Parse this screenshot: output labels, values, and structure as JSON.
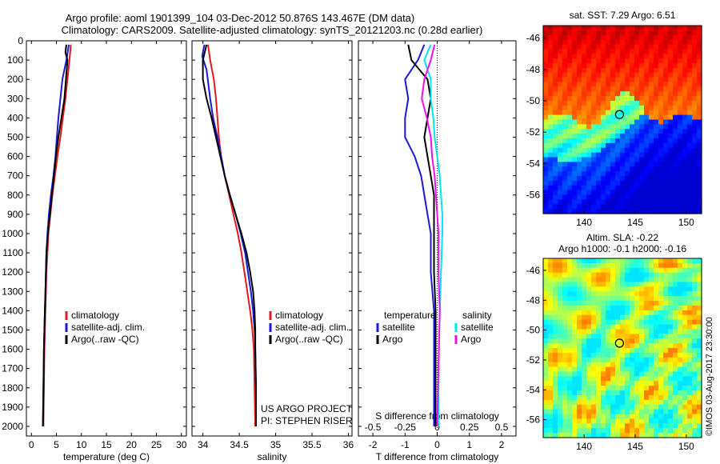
{
  "header": {
    "line1": "Argo profile: aoml 1901399_104 03-Dec-2012 50.876S 143.467E (DM data)",
    "line2": "Climatology: CARS2009. Satellite-adjusted climatology: synTS_20121203.nc (0.28d earlier)"
  },
  "credit": {
    "project": "US ARGO PROJECT",
    "pi": "PI: STEPHEN RISER",
    "imos": "©IMOS 03-Aug-2017 23:30:00"
  },
  "colors": {
    "climatology": "#e41a1c",
    "satellite": "#1a1ad6",
    "argo": "#000000",
    "cyan": "#00e5ee",
    "magenta": "#ee10ee"
  },
  "chart_data": [
    {
      "type": "line",
      "name": "temperature",
      "xlabel": "temperature (deg C)",
      "ylabel": "",
      "xlim": [
        -1,
        31
      ],
      "ylim": [
        2050,
        0
      ],
      "xticks": [
        0,
        5,
        10,
        15,
        20,
        25,
        30
      ],
      "yticks": [
        0,
        100,
        200,
        300,
        400,
        500,
        600,
        700,
        800,
        900,
        1000,
        1100,
        1200,
        1300,
        1400,
        1500,
        1600,
        1700,
        1800,
        1900,
        2000
      ],
      "legend": [
        "climatology",
        "satellite-adj. clim.",
        "Argo(..raw -QC)"
      ],
      "series": [
        {
          "name": "climatology",
          "color": "#e41a1c",
          "points": [
            [
              7.9,
              20
            ],
            [
              7.6,
              100
            ],
            [
              7.2,
              200
            ],
            [
              6.8,
              300
            ],
            [
              6.3,
              400
            ],
            [
              5.8,
              500
            ],
            [
              5.2,
              600
            ],
            [
              4.7,
              700
            ],
            [
              4.2,
              800
            ],
            [
              3.8,
              900
            ],
            [
              3.4,
              1000
            ],
            [
              3.2,
              1100
            ],
            [
              3.0,
              1200
            ],
            [
              2.9,
              1300
            ],
            [
              2.8,
              1400
            ],
            [
              2.7,
              1500
            ],
            [
              2.6,
              1600
            ],
            [
              2.5,
              1800
            ],
            [
              2.4,
              2000
            ]
          ]
        },
        {
          "name": "satellite-adj. clim.",
          "color": "#1a1ad6",
          "points": [
            [
              7.5,
              20
            ],
            [
              7.0,
              100
            ],
            [
              6.2,
              200
            ],
            [
              5.8,
              300
            ],
            [
              5.4,
              400
            ],
            [
              5.1,
              500
            ],
            [
              4.8,
              600
            ],
            [
              4.4,
              700
            ],
            [
              3.9,
              800
            ],
            [
              3.5,
              900
            ],
            [
              3.2,
              1000
            ],
            [
              3.0,
              1100
            ],
            [
              2.9,
              1200
            ],
            [
              2.8,
              1300
            ],
            [
              2.7,
              1400
            ],
            [
              2.6,
              1500
            ],
            [
              2.5,
              1600
            ],
            [
              2.4,
              1800
            ],
            [
              2.3,
              2000
            ]
          ]
        },
        {
          "name": "Argo(..raw -QC)",
          "color": "#000000",
          "points": [
            [
              7.0,
              20
            ],
            [
              6.8,
              60
            ],
            [
              7.2,
              100
            ],
            [
              6.9,
              200
            ],
            [
              6.6,
              300
            ],
            [
              6.0,
              400
            ],
            [
              5.4,
              500
            ],
            [
              4.9,
              600
            ],
            [
              4.5,
              700
            ],
            [
              4.1,
              800
            ],
            [
              3.7,
              900
            ],
            [
              3.3,
              1000
            ],
            [
              3.0,
              1100
            ],
            [
              2.9,
              1200
            ],
            [
              2.8,
              1300
            ],
            [
              2.7,
              1400
            ],
            [
              2.6,
              1500
            ],
            [
              2.5,
              1600
            ],
            [
              2.4,
              1800
            ],
            [
              2.3,
              2000
            ]
          ]
        }
      ]
    },
    {
      "type": "line",
      "name": "salinity",
      "xlabel": "salinity",
      "ylabel": "",
      "xlim": [
        33.85,
        36.05
      ],
      "ylim": [
        2050,
        0
      ],
      "xticks": [
        34,
        34.5,
        35,
        35.5,
        36
      ],
      "legend": [
        "climatology",
        "satellite-adj. clim.",
        "Argo(..raw -QC)"
      ],
      "series": [
        {
          "name": "climatology",
          "color": "#e41a1c",
          "points": [
            [
              34.07,
              20
            ],
            [
              34.1,
              100
            ],
            [
              34.15,
              200
            ],
            [
              34.18,
              300
            ],
            [
              34.2,
              400
            ],
            [
              34.22,
              500
            ],
            [
              34.25,
              600
            ],
            [
              34.3,
              700
            ],
            [
              34.36,
              800
            ],
            [
              34.42,
              900
            ],
            [
              34.48,
              1000
            ],
            [
              34.53,
              1100
            ],
            [
              34.57,
              1200
            ],
            [
              34.61,
              1300
            ],
            [
              34.65,
              1400
            ],
            [
              34.68,
              1500
            ],
            [
              34.7,
              1600
            ],
            [
              34.71,
              1800
            ],
            [
              34.72,
              2000
            ]
          ]
        },
        {
          "name": "satellite-adj. clim.",
          "color": "#1a1ad6",
          "points": [
            [
              34.02,
              20
            ],
            [
              33.99,
              80
            ],
            [
              34.05,
              150
            ],
            [
              34.1,
              300
            ],
            [
              34.14,
              400
            ],
            [
              34.2,
              500
            ],
            [
              34.25,
              600
            ],
            [
              34.3,
              700
            ],
            [
              34.37,
              800
            ],
            [
              34.45,
              900
            ],
            [
              34.52,
              1000
            ],
            [
              34.58,
              1100
            ],
            [
              34.62,
              1200
            ],
            [
              34.66,
              1300
            ],
            [
              34.69,
              1400
            ],
            [
              34.71,
              1500
            ],
            [
              34.72,
              1600
            ],
            [
              34.73,
              1800
            ],
            [
              34.73,
              2000
            ]
          ]
        },
        {
          "name": "Argo(..raw -QC)",
          "color": "#000000",
          "points": [
            [
              34.05,
              20
            ],
            [
              34.0,
              100
            ],
            [
              34.0,
              200
            ],
            [
              34.05,
              300
            ],
            [
              34.12,
              400
            ],
            [
              34.18,
              500
            ],
            [
              34.24,
              600
            ],
            [
              34.3,
              700
            ],
            [
              34.37,
              800
            ],
            [
              34.45,
              900
            ],
            [
              34.53,
              1000
            ],
            [
              34.6,
              1100
            ],
            [
              34.65,
              1200
            ],
            [
              34.69,
              1300
            ],
            [
              34.71,
              1400
            ],
            [
              34.72,
              1500
            ],
            [
              34.72,
              1600
            ],
            [
              34.73,
              1800
            ],
            [
              34.73,
              2000
            ]
          ]
        }
      ]
    },
    {
      "type": "line",
      "name": "difference",
      "xlabel": "T difference from climatology",
      "x2label": "S difference from climatology",
      "ylabel": "",
      "xlim": [
        -2.45,
        2.45
      ],
      "x2lim": [
        -0.6125,
        0.6125
      ],
      "ylim": [
        2050,
        0
      ],
      "xticks": [
        -2,
        -1,
        0,
        1,
        2
      ],
      "x2ticks": [
        -0.5,
        -0.25,
        0,
        0.25,
        0.5
      ],
      "legend": {
        "temperature": [
          "satellite",
          "Argo"
        ],
        "salinity": [
          "satellite",
          "Argo"
        ]
      },
      "legend_titles": [
        "temperature",
        "salinity"
      ],
      "series": [
        {
          "name": "temperature satellite",
          "group": "temperature",
          "color": "#1a1ad6",
          "points": [
            [
              -0.4,
              20
            ],
            [
              -0.6,
              100
            ],
            [
              -1.0,
              200
            ],
            [
              -0.9,
              300
            ],
            [
              -1.0,
              400
            ],
            [
              -1.0,
              500
            ],
            [
              -0.7,
              600
            ],
            [
              -0.5,
              700
            ],
            [
              -0.4,
              800
            ],
            [
              -0.3,
              900
            ],
            [
              -0.2,
              1000
            ],
            [
              -0.2,
              1200
            ],
            [
              -0.1,
              1400
            ],
            [
              -0.1,
              1700
            ],
            [
              -0.1,
              2000
            ]
          ]
        },
        {
          "name": "temperature Argo",
          "group": "temperature",
          "color": "#000000",
          "points": [
            [
              -0.9,
              20
            ],
            [
              -0.8,
              100
            ],
            [
              -0.3,
              200
            ],
            [
              -0.2,
              300
            ],
            [
              -0.3,
              400
            ],
            [
              -0.4,
              500
            ],
            [
              -0.3,
              600
            ],
            [
              -0.2,
              700
            ],
            [
              -0.1,
              800
            ],
            [
              -0.1,
              1000
            ],
            [
              -0.1,
              1200
            ],
            [
              -0.05,
              1400
            ],
            [
              -0.05,
              1700
            ],
            [
              -0.05,
              2000
            ]
          ]
        },
        {
          "name": "salinity satellite",
          "group": "salinity",
          "color": "#00e5ee",
          "points": [
            [
              -0.05,
              20
            ],
            [
              -0.1,
              100
            ],
            [
              -0.05,
              200
            ],
            [
              -0.05,
              300
            ],
            [
              -0.03,
              400
            ],
            [
              -0.02,
              500
            ],
            [
              0.0,
              600
            ],
            [
              0.02,
              700
            ],
            [
              0.03,
              800
            ],
            [
              0.04,
              900
            ],
            [
              0.04,
              1000
            ],
            [
              0.03,
              1200
            ],
            [
              0.02,
              1400
            ],
            [
              0.01,
              1700
            ],
            [
              0.01,
              2000
            ]
          ]
        },
        {
          "name": "salinity Argo",
          "group": "salinity",
          "color": "#ee10ee",
          "points": [
            [
              -0.02,
              20
            ],
            [
              -0.05,
              100
            ],
            [
              -0.1,
              200
            ],
            [
              -0.12,
              300
            ],
            [
              -0.08,
              400
            ],
            [
              -0.05,
              500
            ],
            [
              -0.04,
              600
            ],
            [
              -0.02,
              700
            ],
            [
              -0.01,
              800
            ],
            [
              0.0,
              900
            ],
            [
              0.01,
              1000
            ],
            [
              0.01,
              1200
            ],
            [
              0.02,
              1400
            ],
            [
              0.01,
              1700
            ],
            [
              0.0,
              2000
            ]
          ]
        }
      ]
    },
    {
      "type": "heatmap",
      "name": "sst-map",
      "title": "sat. SST: 7.29 Argo: 6.51",
      "xlim": [
        136,
        151.5
      ],
      "ylim": [
        -57.2,
        -45.2
      ],
      "xticks": [
        140,
        145,
        150
      ],
      "yticks": [
        -46,
        -48,
        -50,
        -52,
        -54,
        -56
      ],
      "marker": [
        143.467,
        -50.876
      ]
    },
    {
      "type": "heatmap",
      "name": "sla-map",
      "title": "Altim. SLA: -0.22",
      "subtitle": "Argo h1000: -0.1 h2000: -0.16",
      "xlim": [
        136,
        151.5
      ],
      "ylim": [
        -57.2,
        -45.2
      ],
      "xticks": [
        140,
        145,
        150
      ],
      "yticks": [
        -46,
        -48,
        -50,
        -52,
        -54,
        -56
      ],
      "marker": [
        143.467,
        -50.876
      ]
    }
  ]
}
